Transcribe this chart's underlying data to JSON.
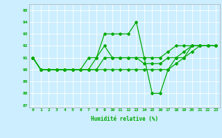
{
  "xlabel": "Humidité relative (%)",
  "background_color": "#cceeff",
  "grid_color": "#ffffff",
  "line_color": "#00aa00",
  "xlim": [
    -0.5,
    23.5
  ],
  "ylim": [
    86.8,
    95.5
  ],
  "yticks": [
    87,
    88,
    89,
    90,
    91,
    92,
    93,
    94,
    95
  ],
  "xticks": [
    0,
    1,
    2,
    3,
    4,
    5,
    6,
    7,
    8,
    9,
    10,
    11,
    12,
    13,
    14,
    15,
    16,
    17,
    18,
    19,
    20,
    21,
    22,
    23
  ],
  "series": [
    [
      91,
      90,
      90,
      90,
      90,
      90,
      90,
      91,
      91,
      93,
      93,
      93,
      93,
      94,
      91,
      91,
      91,
      91.5,
      92,
      92,
      92,
      92,
      92,
      92
    ],
    [
      91,
      90,
      90,
      90,
      90,
      90,
      90,
      90,
      91,
      92,
      91,
      91,
      91,
      91,
      91,
      88,
      88,
      90,
      91,
      91,
      92,
      92,
      92,
      92
    ],
    [
      91,
      90,
      90,
      90,
      90,
      90,
      90,
      90,
      90,
      91,
      91,
      91,
      91,
      91,
      90.5,
      90.5,
      90.5,
      91,
      91,
      91.5,
      92,
      92,
      92,
      92
    ],
    [
      91,
      90,
      90,
      90,
      90,
      90,
      90,
      90,
      90,
      90,
      90,
      90,
      90,
      90,
      90,
      90,
      90,
      90,
      90.5,
      91,
      91.5,
      92,
      92,
      92
    ]
  ]
}
